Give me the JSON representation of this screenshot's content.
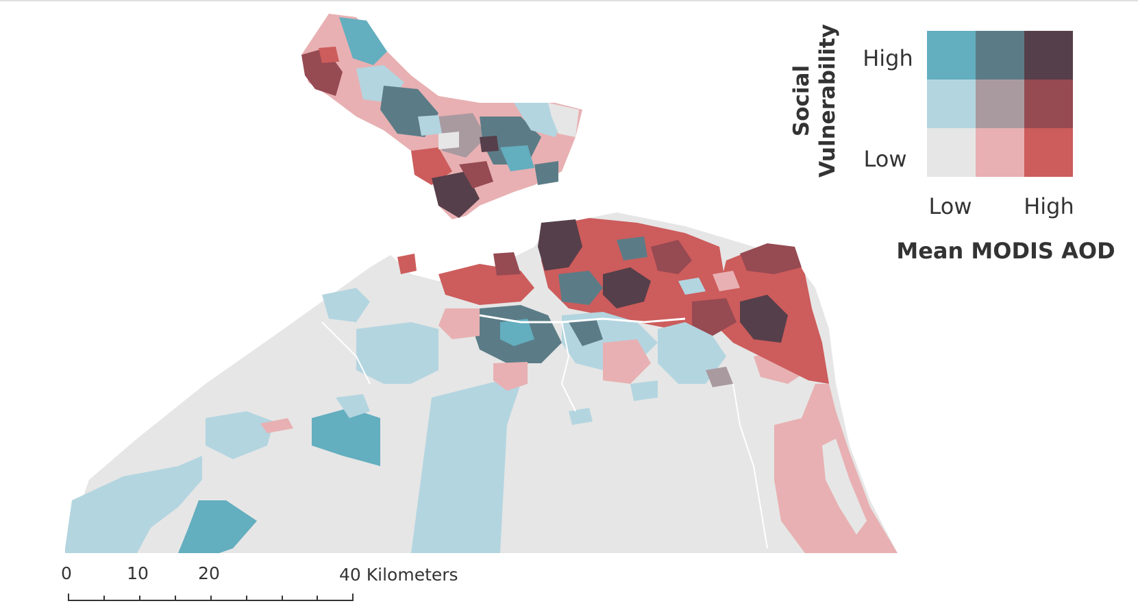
{
  "colors": {
    "background": "#ffffff",
    "low_low": "#e6e6e6",
    "low_mid": "#e8b0b2",
    "low_high": "#cd5c5c",
    "mid_low": "#b3d5e0",
    "mid_mid": "#a99aa0",
    "mid_high": "#964a52",
    "high_low": "#63aebf",
    "high_mid": "#5b7c87",
    "high_high": "#553f4a",
    "text": "#333333"
  },
  "legend": {
    "title_y_line1": "Social",
    "title_y_line2": "Vulnerability",
    "y_high": "High",
    "y_low": "Low",
    "x_low": "Low",
    "x_high": "High",
    "title_x": "Mean MODIS AOD",
    "grid": [
      [
        "high_low",
        "high_mid",
        "high_high"
      ],
      [
        "mid_low",
        "mid_mid",
        "mid_high"
      ],
      [
        "low_low",
        "low_mid",
        "low_high"
      ]
    ]
  },
  "scale_bar": {
    "ticks": [
      "0",
      "10",
      "20"
    ],
    "end_label": "40 Kilometers"
  }
}
